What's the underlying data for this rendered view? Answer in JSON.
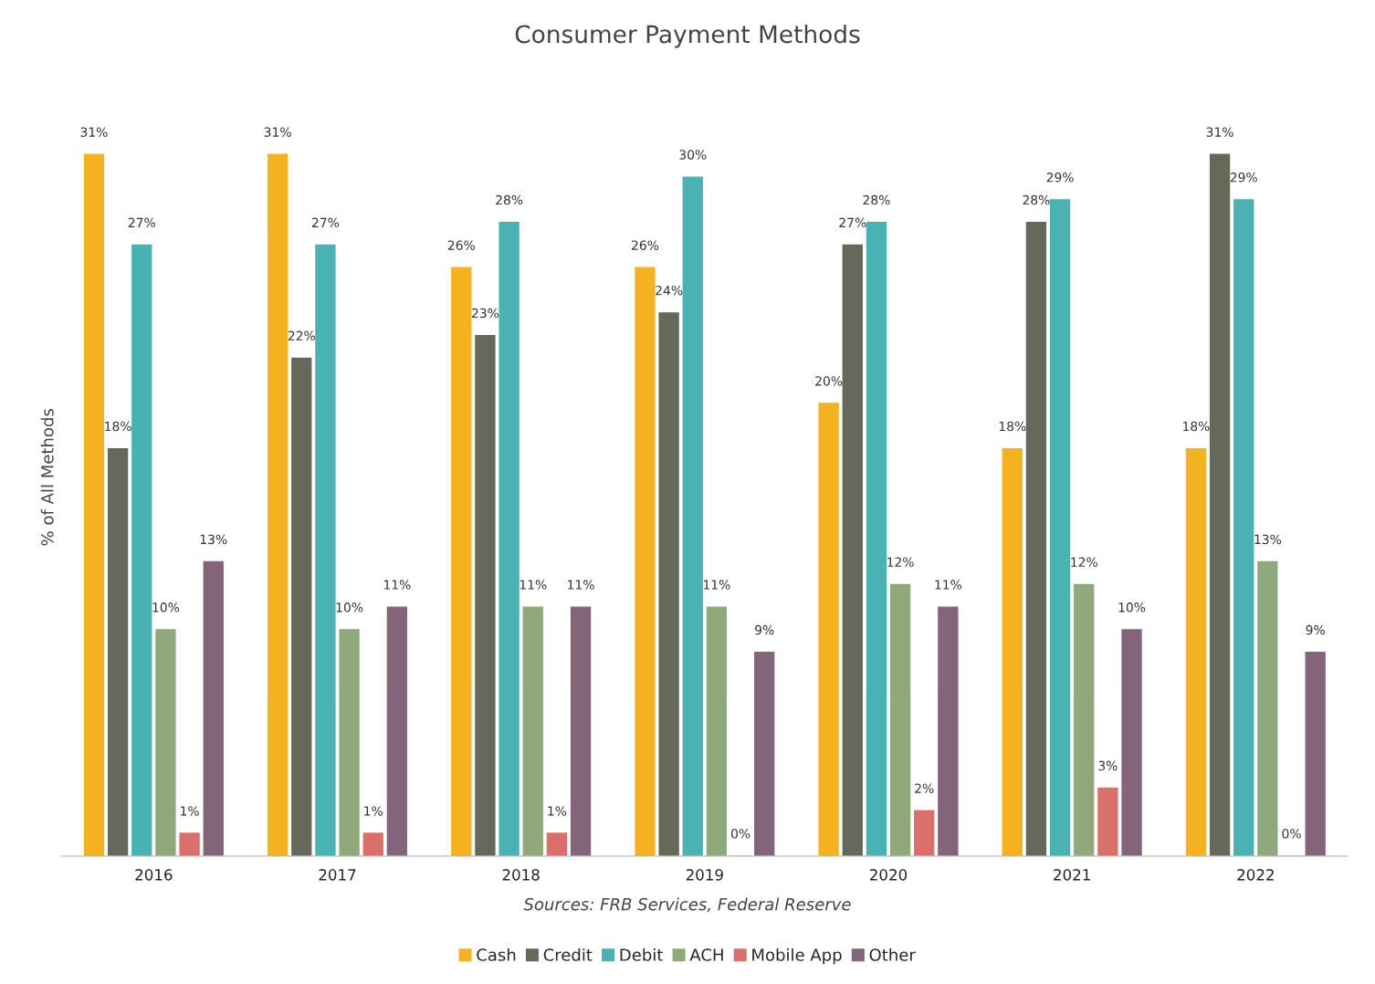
{
  "chart_data": {
    "type": "bar",
    "title": "Consumer Payment Methods",
    "ylabel": "% of All Methods",
    "categories": [
      "2016",
      "2017",
      "2018",
      "2019",
      "2020",
      "2021",
      "2022"
    ],
    "series": [
      {
        "name": "Cash",
        "color": "#f5b120",
        "values": [
          31,
          31,
          26,
          26,
          20,
          18,
          18
        ],
        "value_labels": [
          "31%",
          "31%",
          "26%",
          "26%",
          "20%",
          "18%",
          "18%"
        ]
      },
      {
        "name": "Credit",
        "color": "#66695a",
        "values": [
          18,
          22,
          23,
          24,
          27,
          28,
          31
        ],
        "value_labels": [
          "18%",
          "22%",
          "23%",
          "24%",
          "27%",
          "28%",
          "31%"
        ]
      },
      {
        "name": "Debit",
        "color": "#4bb2b4",
        "values": [
          27,
          27,
          28,
          30,
          28,
          29,
          29
        ],
        "value_labels": [
          "27%",
          "27%",
          "28%",
          "30%",
          "28%",
          "29%",
          "29%"
        ]
      },
      {
        "name": "ACH",
        "color": "#8fa97b",
        "values": [
          10,
          10,
          11,
          11,
          12,
          12,
          13
        ],
        "value_labels": [
          "10%",
          "10%",
          "11%",
          "11%",
          "12%",
          "12%",
          "13%"
        ]
      },
      {
        "name": "Mobile App",
        "color": "#d9706a",
        "values": [
          1,
          1,
          1,
          0,
          2,
          3,
          0
        ],
        "value_labels": [
          "1%",
          "1%",
          "1%",
          "0%",
          "2%",
          "3%",
          "0%"
        ]
      },
      {
        "name": "Other",
        "color": "#836479",
        "values": [
          13,
          11,
          11,
          9,
          11,
          10,
          9
        ],
        "value_labels": [
          "13%",
          "11%",
          "11%",
          "9%",
          "11%",
          "10%",
          "9%"
        ]
      }
    ],
    "annotations": [
      "Sources: FRB Services, Federal Reserve"
    ],
    "legend": "bottom",
    "grid": false
  }
}
